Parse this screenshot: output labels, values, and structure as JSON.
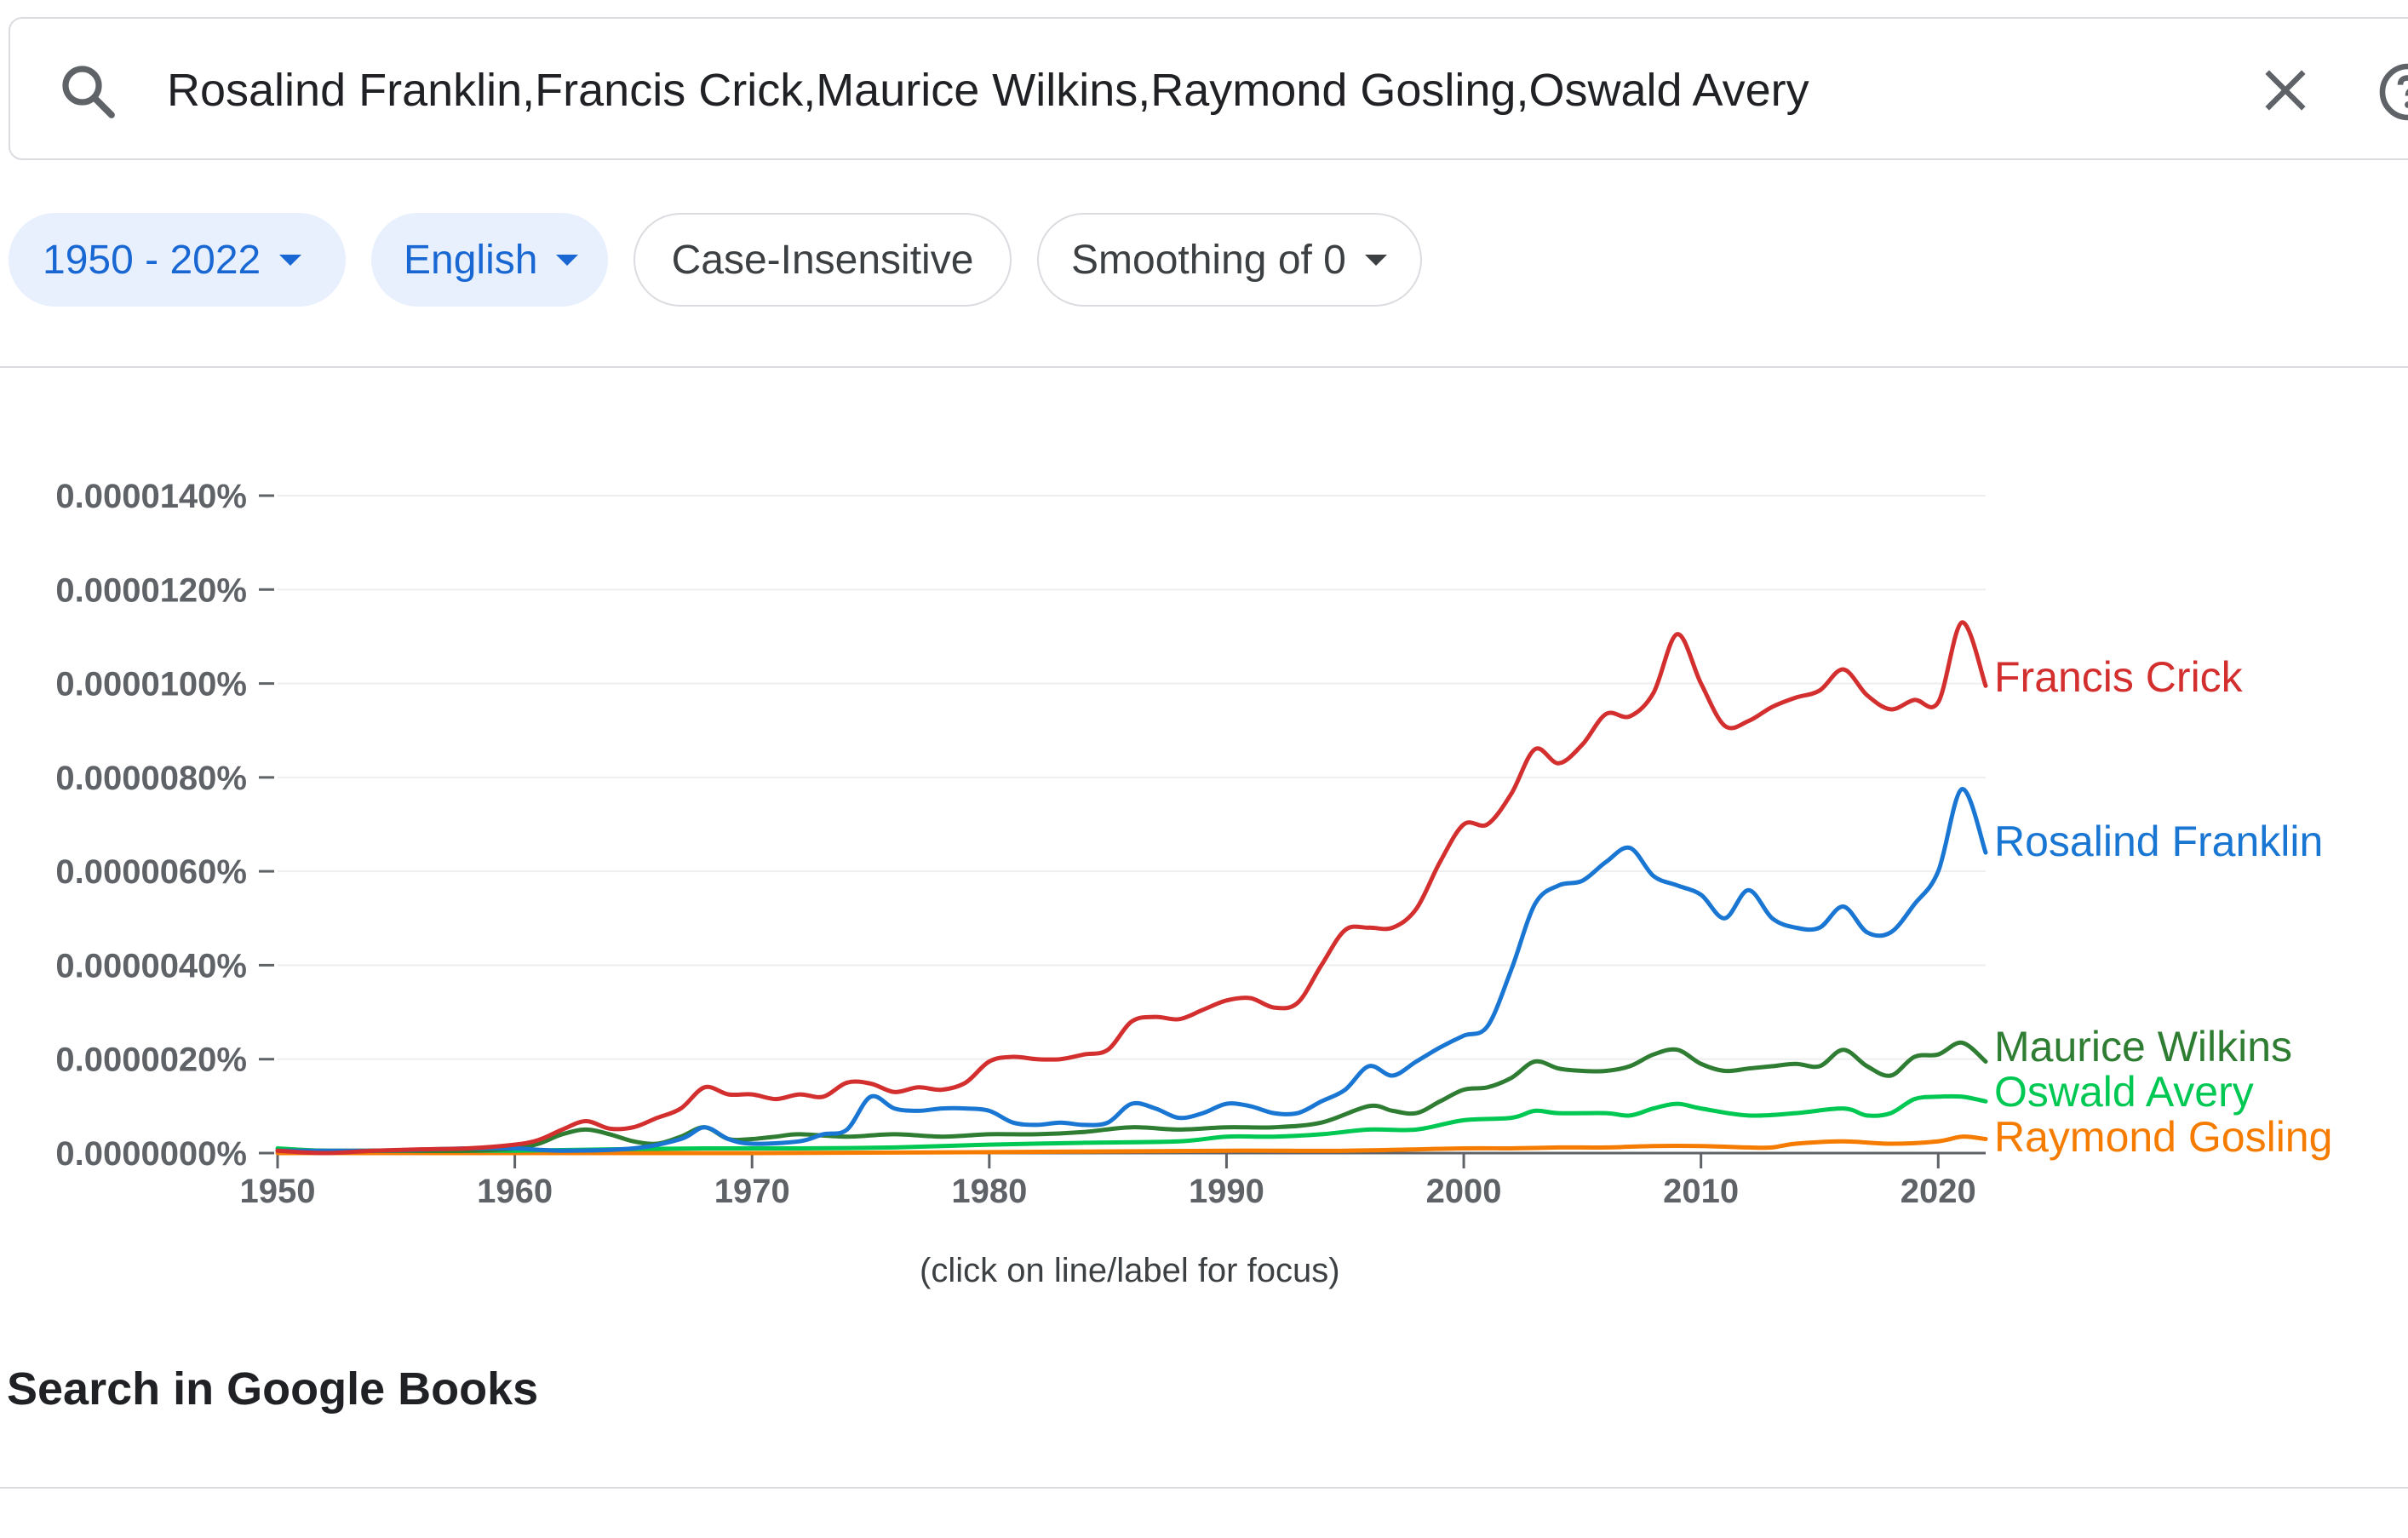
{
  "search": {
    "query": "Rosalind Franklin,Francis Crick,Maurice Wilkins,Raymond Gosling,Oswald Avery",
    "search_icon": "search-icon",
    "clear_icon": "close-icon",
    "help_icon": "help-icon"
  },
  "filters": {
    "year_range": "1950 - 2022",
    "language": "English",
    "case": "Case-Insensitive",
    "smoothing": "Smoothing of 0"
  },
  "hint": "(click on line/label for focus)",
  "books_heading": "Search in Google Books",
  "chart_data": {
    "type": "line",
    "x_range": [
      1950,
      2022
    ],
    "ylim": [
      0,
      1.4e-05
    ],
    "y_ticks": [
      "0.0000000%",
      "0.0000020%",
      "0.0000040%",
      "0.0000060%",
      "0.0000080%",
      "0.0000100%",
      "0.0000120%",
      "0.0000140%"
    ],
    "x_ticks": [
      "1950",
      "1960",
      "1970",
      "1980",
      "1990",
      "2000",
      "2010",
      "2020"
    ],
    "grid": true,
    "legend": "right-inline",
    "series": [
      {
        "name": "Francis Crick",
        "color": "#d32f2f",
        "points": [
          [
            1950,
            5e-08
          ],
          [
            1952,
            0.0
          ],
          [
            1954,
            5e-08
          ],
          [
            1956,
            8e-08
          ],
          [
            1958,
            1e-07
          ],
          [
            1960,
            1.8e-07
          ],
          [
            1961,
            2.8e-07
          ],
          [
            1962,
            5e-07
          ],
          [
            1963,
            6.8e-07
          ],
          [
            1964,
            5.2e-07
          ],
          [
            1965,
            5.5e-07
          ],
          [
            1966,
            7.5e-07
          ],
          [
            1967,
            9.5e-07
          ],
          [
            1968,
            1.4e-06
          ],
          [
            1969,
            1.25e-06
          ],
          [
            1970,
            1.25e-06
          ],
          [
            1971,
            1.15e-06
          ],
          [
            1972,
            1.25e-06
          ],
          [
            1973,
            1.2e-06
          ],
          [
            1974,
            1.5e-06
          ],
          [
            1975,
            1.48e-06
          ],
          [
            1976,
            1.3e-06
          ],
          [
            1977,
            1.4e-06
          ],
          [
            1978,
            1.35e-06
          ],
          [
            1979,
            1.5e-06
          ],
          [
            1980,
            1.95e-06
          ],
          [
            1981,
            2.05e-06
          ],
          [
            1982,
            2e-06
          ],
          [
            1983,
            2e-06
          ],
          [
            1984,
            2.1e-06
          ],
          [
            1985,
            2.2e-06
          ],
          [
            1986,
            2.8e-06
          ],
          [
            1987,
            2.9e-06
          ],
          [
            1988,
            2.85e-06
          ],
          [
            1989,
            3.05e-06
          ],
          [
            1990,
            3.25e-06
          ],
          [
            1991,
            3.3e-06
          ],
          [
            1992,
            3.1e-06
          ],
          [
            1993,
            3.2e-06
          ],
          [
            1994,
            4e-06
          ],
          [
            1995,
            4.75e-06
          ],
          [
            1996,
            4.8e-06
          ],
          [
            1997,
            4.8e-06
          ],
          [
            1998,
            5.2e-06
          ],
          [
            1999,
            6.2e-06
          ],
          [
            2000,
            7e-06
          ],
          [
            2001,
            7e-06
          ],
          [
            2002,
            7.65e-06
          ],
          [
            2003,
            8.6e-06
          ],
          [
            2004,
            8.3e-06
          ],
          [
            2005,
            8.7e-06
          ],
          [
            2006,
            9.35e-06
          ],
          [
            2007,
            9.3e-06
          ],
          [
            2008,
            9.8e-06
          ],
          [
            2009,
            1.105e-05
          ],
          [
            2010,
            1e-05
          ],
          [
            2011,
            9.1e-06
          ],
          [
            2012,
            9.2e-06
          ],
          [
            2013,
            9.5e-06
          ],
          [
            2014,
            9.7e-06
          ],
          [
            2015,
            9.85e-06
          ],
          [
            2016,
            1.03e-05
          ],
          [
            2017,
            9.75e-06
          ],
          [
            2018,
            9.45e-06
          ],
          [
            2019,
            9.65e-06
          ],
          [
            2020,
            9.6e-06
          ],
          [
            2021,
            1.13e-05
          ],
          [
            2022,
            9.95e-06
          ]
        ]
      },
      {
        "name": "Rosalind Franklin",
        "color": "#1976d2",
        "points": [
          [
            1950,
            5e-08
          ],
          [
            1954,
            5e-08
          ],
          [
            1958,
            1e-07
          ],
          [
            1960,
            1e-07
          ],
          [
            1962,
            5e-08
          ],
          [
            1965,
            1e-07
          ],
          [
            1967,
            3e-07
          ],
          [
            1968,
            5.5e-07
          ],
          [
            1969,
            3e-07
          ],
          [
            1970,
            2e-07
          ],
          [
            1972,
            2.5e-07
          ],
          [
            1973,
            4e-07
          ],
          [
            1974,
            5e-07
          ],
          [
            1975,
            1.2e-06
          ],
          [
            1976,
            9.5e-07
          ],
          [
            1977,
            9e-07
          ],
          [
            1978,
            9.5e-07
          ],
          [
            1979,
            9.5e-07
          ],
          [
            1980,
            9e-07
          ],
          [
            1981,
            6.5e-07
          ],
          [
            1982,
            6e-07
          ],
          [
            1983,
            6.5e-07
          ],
          [
            1984,
            6e-07
          ],
          [
            1985,
            6.5e-07
          ],
          [
            1986,
            1.05e-06
          ],
          [
            1987,
            9.5e-07
          ],
          [
            1988,
            7.5e-07
          ],
          [
            1989,
            8.5e-07
          ],
          [
            1990,
            1.05e-06
          ],
          [
            1991,
            1e-06
          ],
          [
            1992,
            8.5e-07
          ],
          [
            1993,
            8.5e-07
          ],
          [
            1994,
            1.1e-06
          ],
          [
            1995,
            1.35e-06
          ],
          [
            1996,
            1.85e-06
          ],
          [
            1997,
            1.65e-06
          ],
          [
            1998,
            1.95e-06
          ],
          [
            1999,
            2.25e-06
          ],
          [
            2000,
            2.5e-06
          ],
          [
            2001,
            2.7e-06
          ],
          [
            2002,
            3.9e-06
          ],
          [
            2003,
            5.3e-06
          ],
          [
            2004,
            5.7e-06
          ],
          [
            2005,
            5.8e-06
          ],
          [
            2006,
            6.2e-06
          ],
          [
            2007,
            6.5e-06
          ],
          [
            2008,
            5.9e-06
          ],
          [
            2009,
            5.7e-06
          ],
          [
            2010,
            5.5e-06
          ],
          [
            2011,
            5e-06
          ],
          [
            2012,
            5.6e-06
          ],
          [
            2013,
            5e-06
          ],
          [
            2014,
            4.8e-06
          ],
          [
            2015,
            4.8e-06
          ],
          [
            2016,
            5.25e-06
          ],
          [
            2017,
            4.7e-06
          ],
          [
            2018,
            4.7e-06
          ],
          [
            2019,
            5.3e-06
          ],
          [
            2020,
            6e-06
          ],
          [
            2021,
            7.75e-06
          ],
          [
            2022,
            6.4e-06
          ]
        ]
      },
      {
        "name": "Maurice Wilkins",
        "color": "#2e7d32",
        "points": [
          [
            1950,
            5e-08
          ],
          [
            1954,
            5e-08
          ],
          [
            1958,
            5e-08
          ],
          [
            1960,
            1e-07
          ],
          [
            1961,
            2e-07
          ],
          [
            1962,
            4e-07
          ],
          [
            1963,
            5e-07
          ],
          [
            1964,
            4e-07
          ],
          [
            1965,
            2.5e-07
          ],
          [
            1966,
            2e-07
          ],
          [
            1967,
            3.5e-07
          ],
          [
            1968,
            5.5e-07
          ],
          [
            1969,
            3e-07
          ],
          [
            1970,
            3e-07
          ],
          [
            1971,
            3.5e-07
          ],
          [
            1972,
            4e-07
          ],
          [
            1974,
            3.5e-07
          ],
          [
            1976,
            4e-07
          ],
          [
            1978,
            3.5e-07
          ],
          [
            1980,
            4e-07
          ],
          [
            1982,
            4e-07
          ],
          [
            1984,
            4.5e-07
          ],
          [
            1986,
            5.5e-07
          ],
          [
            1988,
            5e-07
          ],
          [
            1990,
            5.5e-07
          ],
          [
            1992,
            5.5e-07
          ],
          [
            1994,
            6.5e-07
          ],
          [
            1996,
            1e-06
          ],
          [
            1997,
            9e-07
          ],
          [
            1998,
            8.5e-07
          ],
          [
            1999,
            1.1e-06
          ],
          [
            2000,
            1.35e-06
          ],
          [
            2001,
            1.4e-06
          ],
          [
            2002,
            1.6e-06
          ],
          [
            2003,
            1.95e-06
          ],
          [
            2004,
            1.8e-06
          ],
          [
            2005,
            1.75e-06
          ],
          [
            2006,
            1.75e-06
          ],
          [
            2007,
            1.85e-06
          ],
          [
            2008,
            2.1e-06
          ],
          [
            2009,
            2.2e-06
          ],
          [
            2010,
            1.9e-06
          ],
          [
            2011,
            1.75e-06
          ],
          [
            2012,
            1.8e-06
          ],
          [
            2013,
            1.85e-06
          ],
          [
            2014,
            1.9e-06
          ],
          [
            2015,
            1.85e-06
          ],
          [
            2016,
            2.2e-06
          ],
          [
            2017,
            1.85e-06
          ],
          [
            2018,
            1.65e-06
          ],
          [
            2019,
            2.05e-06
          ],
          [
            2020,
            2.1e-06
          ],
          [
            2021,
            2.35e-06
          ],
          [
            2022,
            1.95e-06
          ]
        ]
      },
      {
        "name": "Oswald Avery",
        "color": "#00c853",
        "points": [
          [
            1950,
            1e-07
          ],
          [
            1952,
            5e-08
          ],
          [
            1956,
            5e-08
          ],
          [
            1960,
            5e-08
          ],
          [
            1964,
            8e-08
          ],
          [
            1968,
            1e-07
          ],
          [
            1972,
            1e-07
          ],
          [
            1976,
            1.2e-07
          ],
          [
            1980,
            1.8e-07
          ],
          [
            1984,
            2.2e-07
          ],
          [
            1988,
            2.5e-07
          ],
          [
            1990,
            3.5e-07
          ],
          [
            1992,
            3.5e-07
          ],
          [
            1994,
            4e-07
          ],
          [
            1996,
            5e-07
          ],
          [
            1998,
            5e-07
          ],
          [
            2000,
            7e-07
          ],
          [
            2002,
            7.5e-07
          ],
          [
            2003,
            9e-07
          ],
          [
            2004,
            8.5e-07
          ],
          [
            2006,
            8.5e-07
          ],
          [
            2007,
            8e-07
          ],
          [
            2008,
            9.5e-07
          ],
          [
            2009,
            1.05e-06
          ],
          [
            2010,
            9.5e-07
          ],
          [
            2012,
            8e-07
          ],
          [
            2014,
            8.5e-07
          ],
          [
            2016,
            9.5e-07
          ],
          [
            2017,
            8e-07
          ],
          [
            2018,
            8.5e-07
          ],
          [
            2019,
            1.15e-06
          ],
          [
            2020,
            1.2e-06
          ],
          [
            2021,
            1.2e-06
          ],
          [
            2022,
            1.1e-06
          ]
        ]
      },
      {
        "name": "Raymond Gosling",
        "color": "#f57c00",
        "points": [
          [
            1950,
            0.0
          ],
          [
            1960,
            0.0
          ],
          [
            1970,
            0.0
          ],
          [
            1980,
            2e-08
          ],
          [
            1990,
            5e-08
          ],
          [
            1995,
            5e-08
          ],
          [
            2000,
            1e-07
          ],
          [
            2002,
            1e-07
          ],
          [
            2004,
            1.2e-07
          ],
          [
            2006,
            1.2e-07
          ],
          [
            2008,
            1.5e-07
          ],
          [
            2010,
            1.5e-07
          ],
          [
            2012,
            1.2e-07
          ],
          [
            2013,
            1.2e-07
          ],
          [
            2014,
            2e-07
          ],
          [
            2016,
            2.5e-07
          ],
          [
            2018,
            2e-07
          ],
          [
            2020,
            2.5e-07
          ],
          [
            2021,
            3.5e-07
          ],
          [
            2022,
            3e-07
          ]
        ]
      }
    ]
  }
}
